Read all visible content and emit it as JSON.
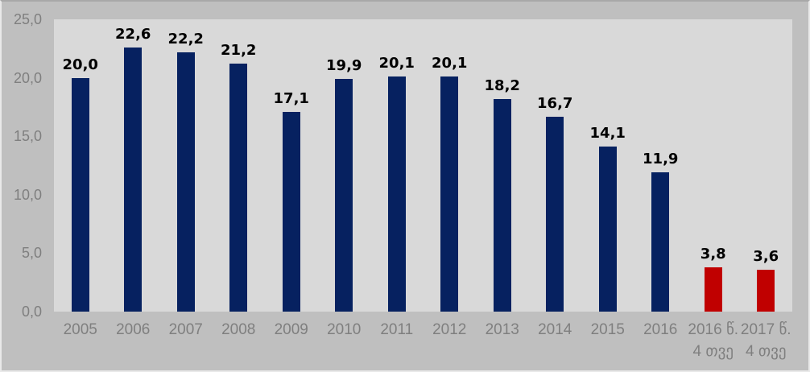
{
  "chart_data": {
    "type": "bar",
    "title": "",
    "xlabel": "",
    "ylabel": "",
    "grid": false,
    "legend": "none",
    "categories": [
      "2005",
      "2006",
      "2007",
      "2008",
      "2009",
      "2010",
      "2011",
      "2012",
      "2013",
      "2014",
      "2015",
      "2016",
      "2016 წ.\n4 თვე",
      "2017 წ.\n4 თვე"
    ],
    "values": [
      20.0,
      22.6,
      22.2,
      21.2,
      17.1,
      19.9,
      20.1,
      20.1,
      18.2,
      16.7,
      14.1,
      11.9,
      3.8,
      3.6
    ],
    "value_labels": [
      "20,0",
      "22,6",
      "22,2",
      "21,2",
      "17,1",
      "19,9",
      "20,1",
      "20,1",
      "18,2",
      "16,7",
      "14,1",
      "11,9",
      "3,8",
      "3,6"
    ],
    "bar_colors": [
      "#062160",
      "#062160",
      "#062160",
      "#062160",
      "#062160",
      "#062160",
      "#062160",
      "#062160",
      "#062160",
      "#062160",
      "#062160",
      "#062160",
      "#c00000",
      "#c00000"
    ],
    "ylim": [
      0,
      25
    ],
    "ytick_values": [
      0,
      5,
      10,
      15,
      20,
      25
    ],
    "ytick_labels": [
      "0,0",
      "5,0",
      "10,0",
      "15,0",
      "20,0",
      "25,0"
    ],
    "colors": {
      "bar_main": "#062160",
      "bar_highlight": "#c00000",
      "plot_background": "#d9d9d9",
      "outer_background": "#bfbfbf",
      "axis_text": "#7f7f7f",
      "value_text": "#000000"
    }
  }
}
